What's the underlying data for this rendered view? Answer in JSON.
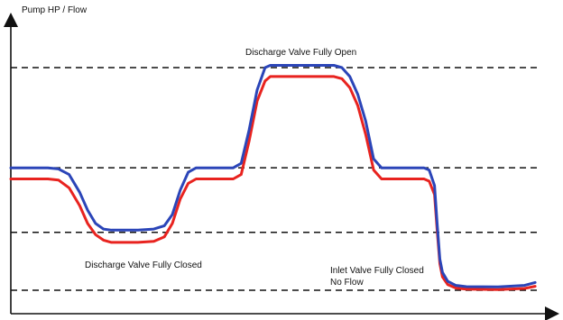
{
  "chart_data": {
    "type": "line",
    "ylabel": "Pump HP / Flow",
    "xlabel": "",
    "annotations": {
      "open": "Discharge Valve Fully Open",
      "closed": "Discharge Valve Fully Closed",
      "inlet_line1": "Inlet Valve Fully Closed",
      "inlet_line2": "No Flow"
    },
    "reference_levels": [
      100,
      55,
      26,
      0
    ],
    "series": [
      {
        "color": "#2b45b8",
        "points": [
          [
            0,
            55
          ],
          [
            7,
            55
          ],
          [
            9,
            54.5
          ],
          [
            11,
            52
          ],
          [
            13,
            44
          ],
          [
            14.5,
            36
          ],
          [
            16,
            30
          ],
          [
            17.5,
            27.5
          ],
          [
            19,
            27
          ],
          [
            24,
            27
          ],
          [
            27,
            27.5
          ],
          [
            29,
            29
          ],
          [
            30.5,
            34
          ],
          [
            32,
            45
          ],
          [
            33.5,
            53
          ],
          [
            35,
            55
          ],
          [
            42,
            55
          ],
          [
            43.5,
            57
          ],
          [
            45,
            72
          ],
          [
            46.5,
            90
          ],
          [
            48,
            100
          ],
          [
            49,
            101
          ],
          [
            61,
            101
          ],
          [
            62.5,
            100
          ],
          [
            64,
            96
          ],
          [
            65.5,
            88
          ],
          [
            67,
            76
          ],
          [
            68.5,
            59
          ],
          [
            70,
            55
          ],
          [
            78,
            55
          ],
          [
            79,
            54
          ],
          [
            80,
            47
          ],
          [
            80.5,
            30
          ],
          [
            81,
            14
          ],
          [
            81.5,
            8
          ],
          [
            82.5,
            4
          ],
          [
            84,
            2.2
          ],
          [
            86,
            1.6
          ],
          [
            92,
            1.5
          ],
          [
            97,
            2.2
          ],
          [
            99,
            3.5
          ]
        ]
      },
      {
        "color": "#e8231f",
        "points": [
          [
            0,
            50
          ],
          [
            7,
            50
          ],
          [
            9,
            49.5
          ],
          [
            11,
            46
          ],
          [
            13,
            38
          ],
          [
            14.5,
            30
          ],
          [
            16,
            25
          ],
          [
            17.5,
            22.5
          ],
          [
            19,
            21.5
          ],
          [
            24,
            21.5
          ],
          [
            27,
            22
          ],
          [
            29,
            24
          ],
          [
            30.5,
            30
          ],
          [
            32,
            41
          ],
          [
            33.5,
            48
          ],
          [
            35,
            50
          ],
          [
            42,
            50
          ],
          [
            43.5,
            52
          ],
          [
            45,
            67
          ],
          [
            46.5,
            85
          ],
          [
            48,
            94
          ],
          [
            49,
            96
          ],
          [
            61,
            96
          ],
          [
            62.5,
            95
          ],
          [
            64,
            91
          ],
          [
            65.5,
            83
          ],
          [
            67,
            70
          ],
          [
            68.5,
            54
          ],
          [
            70,
            50
          ],
          [
            78,
            50
          ],
          [
            79,
            49
          ],
          [
            80,
            43
          ],
          [
            80.5,
            27
          ],
          [
            81,
            12
          ],
          [
            81.5,
            6
          ],
          [
            82.5,
            2.5
          ],
          [
            84,
            1
          ],
          [
            86,
            0.5
          ],
          [
            92,
            0.3
          ],
          [
            97,
            0.8
          ],
          [
            99,
            1.8
          ]
        ]
      }
    ]
  }
}
